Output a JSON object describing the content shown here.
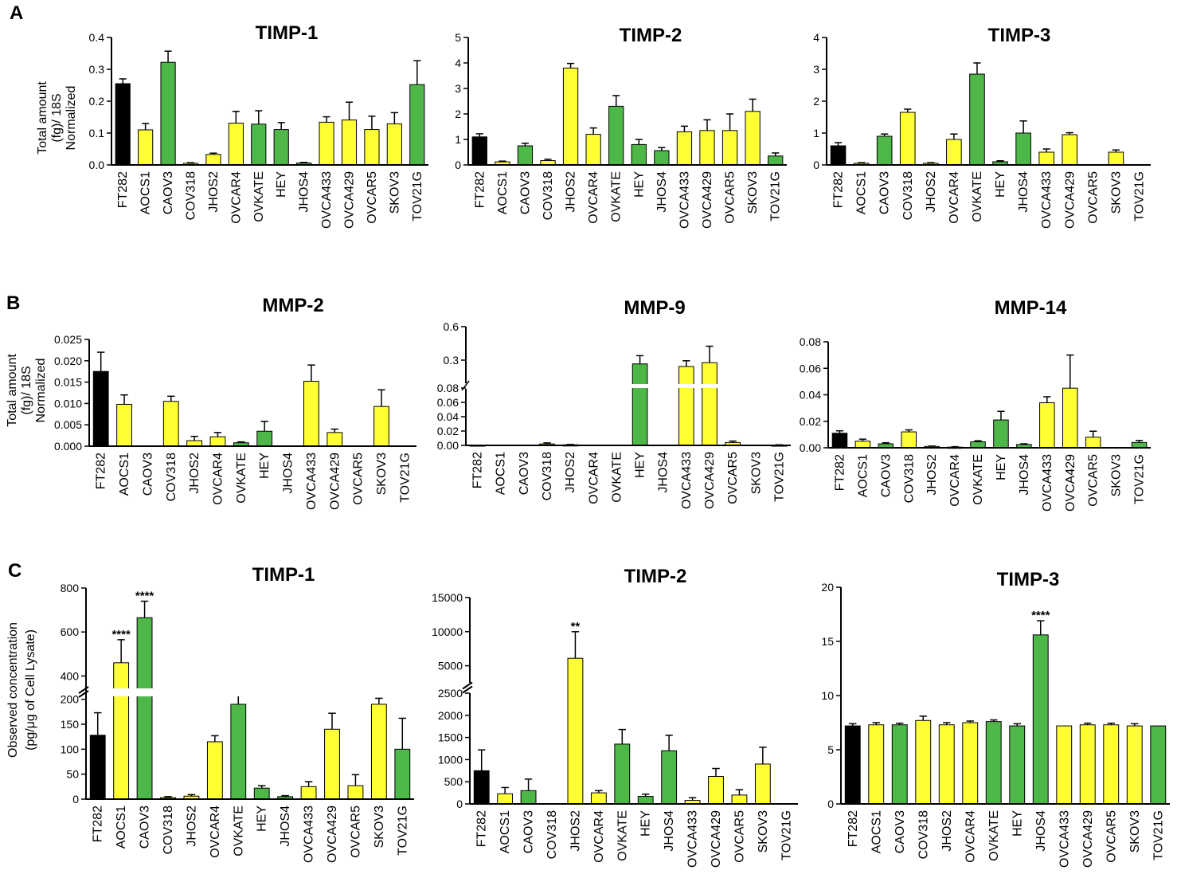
{
  "colors": {
    "black": "#000000",
    "yellow": "#ffff33",
    "green": "#4db848"
  },
  "categories": [
    "FT282",
    "AOCS1",
    "CAOV3",
    "COV318",
    "JHOS2",
    "OVCAR4",
    "OVKATE",
    "HEY",
    "JHOS4",
    "OVCA433",
    "OVCA429",
    "OVCAR5",
    "SKOV3",
    "TOV21G"
  ],
  "bar_colors": [
    "black",
    "yellow",
    "green",
    "yellow",
    "yellow",
    "yellow",
    "green",
    "green",
    "green",
    "yellow",
    "yellow",
    "yellow",
    "yellow",
    "green"
  ],
  "panels": {
    "A": {
      "letter": "A",
      "ylabel_lines": [
        "Total amount",
        "(fg)/ 18S",
        "Normalized"
      ]
    },
    "B": {
      "letter": "B",
      "ylabel_lines": [
        "Total amount",
        "(fg)/ 18S",
        "Normalized"
      ]
    },
    "C": {
      "letter": "C",
      "ylabel_lines": [
        "Observed concentration",
        "(pg/μg of Cell Lysate)"
      ]
    }
  },
  "chart_data": [
    {
      "id": "A1",
      "panel": "A",
      "type": "bar",
      "title": "TIMP-1",
      "ylim": [
        0,
        0.4
      ],
      "ticks": [
        0,
        0.1,
        0.2,
        0.3,
        0.4
      ],
      "tick_labels": [
        "0.0",
        "0.1",
        "0.2",
        "0.3",
        "0.4"
      ],
      "values": [
        0.255,
        0.11,
        0.322,
        0.005,
        0.033,
        0.131,
        0.128,
        0.111,
        0.006,
        0.134,
        0.141,
        0.111,
        0.129,
        0.252
      ],
      "errors": [
        0.015,
        0.02,
        0.035,
        0.002,
        0.004,
        0.037,
        0.042,
        0.022,
        0.002,
        0.017,
        0.056,
        0.042,
        0.035,
        0.075
      ]
    },
    {
      "id": "A2",
      "panel": "A",
      "type": "bar",
      "title": "TIMP-2",
      "ylim": [
        0,
        5
      ],
      "ticks": [
        0,
        1,
        2,
        3,
        4,
        5
      ],
      "tick_labels": [
        "0",
        "1",
        "2",
        "3",
        "4",
        "5"
      ],
      "values": [
        1.1,
        0.12,
        0.75,
        0.17,
        3.8,
        1.2,
        2.3,
        0.8,
        0.56,
        1.3,
        1.35,
        1.35,
        2.1,
        0.35
      ],
      "errors": [
        0.12,
        0.03,
        0.1,
        0.05,
        0.18,
        0.25,
        0.42,
        0.2,
        0.12,
        0.22,
        0.42,
        0.65,
        0.48,
        0.12
      ]
    },
    {
      "id": "A3",
      "panel": "A",
      "type": "bar",
      "title": "TIMP-3",
      "ylim": [
        0,
        4
      ],
      "ticks": [
        0,
        1,
        2,
        3,
        4
      ],
      "tick_labels": [
        "0",
        "1",
        "2",
        "3",
        "4"
      ],
      "values": [
        0.6,
        0.05,
        0.9,
        1.65,
        0.05,
        0.8,
        2.85,
        0.1,
        1.0,
        0.4,
        0.95,
        0,
        0.4,
        0
      ],
      "errors": [
        0.1,
        0.02,
        0.07,
        0.1,
        0.02,
        0.17,
        0.35,
        0.03,
        0.38,
        0.1,
        0.06,
        0,
        0.07,
        0
      ]
    },
    {
      "id": "B1",
      "panel": "B",
      "type": "bar",
      "title": "MMP-2",
      "ylim": [
        0,
        0.025
      ],
      "ticks": [
        0,
        0.005,
        0.01,
        0.015,
        0.02,
        0.025
      ],
      "tick_labels": [
        "0.000",
        "0.005",
        "0.010",
        "0.015",
        "0.020",
        "0.025"
      ],
      "values": [
        0.0175,
        0.0098,
        0,
        0.0105,
        0.0013,
        0.0022,
        0.0008,
        0.0035,
        0,
        0.0152,
        0.0032,
        0,
        0.0093,
        0
      ],
      "errors": [
        0.0045,
        0.0022,
        0,
        0.0012,
        0.001,
        0.001,
        0.0002,
        0.0023,
        0,
        0.0038,
        0.0008,
        0,
        0.0039,
        0
      ]
    },
    {
      "id": "B2",
      "panel": "B",
      "type": "bar",
      "title": "MMP-9",
      "ylim": [
        0,
        0.6
      ],
      "break": [
        0.09,
        0.25
      ],
      "ticks": [
        0,
        0.02,
        0.04,
        0.06,
        0.08,
        0.3,
        0.6
      ],
      "tick_labels": [
        "0.00",
        "0.02",
        "0.04",
        "0.06",
        "0.08",
        "0.3",
        "0.6"
      ],
      "values": [
        0.0005,
        0,
        0,
        0.002,
        0.0008,
        0,
        0,
        0.27,
        0,
        0.25,
        0.28,
        0.004,
        0,
        0.0005
      ],
      "errors": [
        0,
        0,
        0,
        0.0015,
        0.0005,
        0,
        0,
        0.07,
        0,
        0.045,
        0.145,
        0.002,
        0,
        0.0003
      ]
    },
    {
      "id": "B3",
      "panel": "B",
      "type": "bar",
      "title": "MMP-14",
      "ylim": [
        0,
        0.08
      ],
      "ticks": [
        0,
        0.02,
        0.04,
        0.06,
        0.08
      ],
      "tick_labels": [
        "0.00",
        "0.02",
        "0.04",
        "0.06",
        "0.08"
      ],
      "values": [
        0.011,
        0.005,
        0.003,
        0.012,
        0.001,
        0.0005,
        0.0045,
        0.021,
        0.0025,
        0.034,
        0.045,
        0.008,
        0,
        0.004
      ],
      "errors": [
        0.0018,
        0.0015,
        0.0008,
        0.0015,
        0.0003,
        0.0003,
        0.0008,
        0.0065,
        0.0005,
        0.0045,
        0.025,
        0.0045,
        0,
        0.0015
      ]
    },
    {
      "id": "C1",
      "panel": "C",
      "type": "bar",
      "title": "TIMP-1",
      "ylim": [
        0,
        800
      ],
      "break": [
        225,
        300
      ],
      "ticks": [
        0,
        50,
        100,
        150,
        200,
        400,
        600,
        800
      ],
      "tick_labels": [
        "0",
        "50",
        "100",
        "150",
        "200",
        "400",
        "600",
        "800"
      ],
      "values": [
        128,
        460,
        665,
        3,
        6,
        115,
        190,
        22,
        5,
        25,
        140,
        27,
        190,
        100
      ],
      "errors": [
        45,
        105,
        75,
        2,
        3,
        12,
        28,
        5,
        2,
        10,
        32,
        22,
        12,
        62
      ],
      "significance": [
        "",
        "****",
        "****",
        "",
        "",
        "",
        "",
        "",
        "",
        "",
        "",
        "",
        "",
        ""
      ]
    },
    {
      "id": "C2",
      "panel": "C",
      "type": "bar",
      "title": "TIMP-2",
      "ylim": [
        0,
        15000
      ],
      "break": [
        2500,
        2500
      ],
      "ticks": [
        0,
        500,
        1000,
        1500,
        2000,
        2500,
        5000,
        10000,
        15000
      ],
      "tick_labels": [
        "0",
        "500",
        "1000",
        "1500",
        "2000",
        "2500",
        "5000",
        "10000",
        "15000"
      ],
      "values": [
        750,
        230,
        300,
        0,
        6100,
        250,
        1350,
        170,
        1200,
        80,
        620,
        200,
        900,
        0
      ],
      "errors": [
        470,
        140,
        260,
        0,
        3900,
        50,
        330,
        50,
        350,
        60,
        180,
        120,
        380,
        0
      ],
      "significance": [
        "",
        "",
        "",
        "",
        "**",
        "",
        "",
        "",
        "",
        "",
        "",
        "",
        "",
        ""
      ]
    },
    {
      "id": "C3",
      "panel": "C",
      "type": "bar",
      "title": "TIMP-3",
      "ylim": [
        0,
        20
      ],
      "ticks": [
        0,
        5,
        10,
        15,
        20
      ],
      "tick_labels": [
        "0",
        "5",
        "10",
        "15",
        "20"
      ],
      "values": [
        7.2,
        7.3,
        7.3,
        7.7,
        7.3,
        7.5,
        7.6,
        7.2,
        15.6,
        7.2,
        7.3,
        7.3,
        7.2,
        7.2
      ],
      "errors": [
        0.2,
        0.2,
        0.15,
        0.4,
        0.2,
        0.15,
        0.15,
        0.2,
        1.3,
        0,
        0.15,
        0.15,
        0.2,
        0
      ],
      "significance": [
        "",
        "",
        "",
        "",
        "",
        "",
        "",
        "",
        "****",
        "",
        "",
        "",
        "",
        ""
      ]
    }
  ]
}
